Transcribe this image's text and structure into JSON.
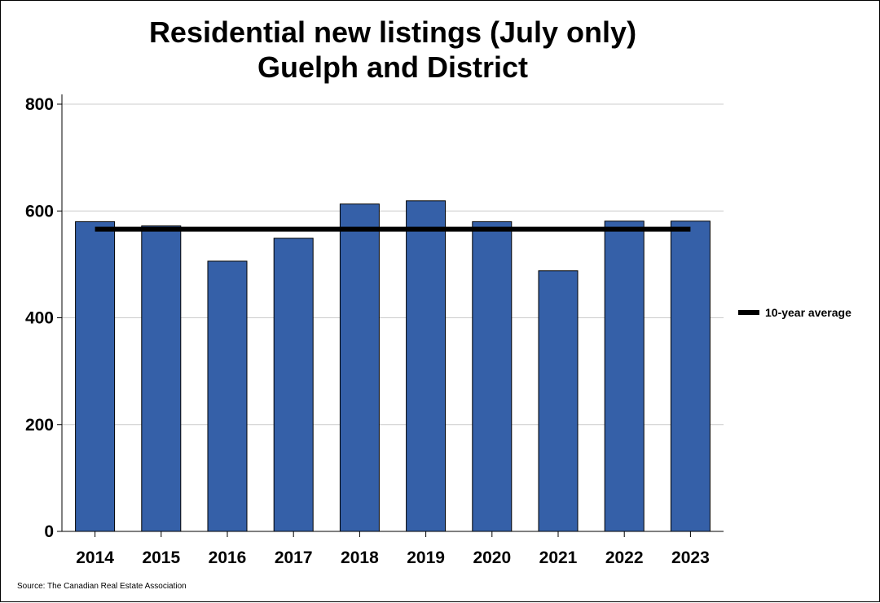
{
  "chart_data": {
    "type": "bar",
    "title": "Residential new listings (July only)",
    "subtitle": "Guelph and District",
    "categories": [
      "2014",
      "2015",
      "2016",
      "2017",
      "2018",
      "2019",
      "2020",
      "2021",
      "2022",
      "2023"
    ],
    "series": [
      {
        "values": [
          580,
          572,
          506,
          549,
          613,
          619,
          580,
          488,
          581,
          581
        ],
        "color": "#3560a8"
      }
    ],
    "reference_line": {
      "name": "10-year average",
      "value": 566,
      "color": "#000000"
    },
    "ylim": [
      0,
      800
    ],
    "yticks": [
      0,
      200,
      400,
      600,
      800
    ],
    "grid": true,
    "legend_position": "right",
    "source": "Source: The Canadian Real Estate Association"
  }
}
